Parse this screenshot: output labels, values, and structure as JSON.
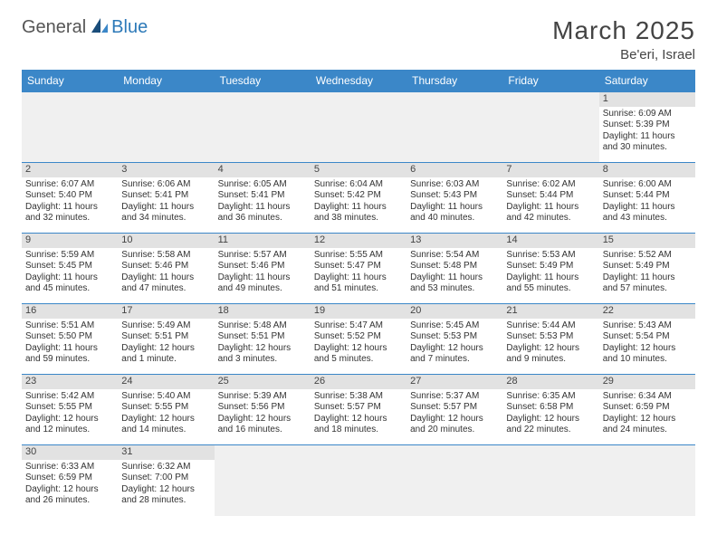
{
  "logo": {
    "general": "General",
    "blue": "Blue"
  },
  "title": "March 2025",
  "location": "Be'eri, Israel",
  "colors": {
    "header_bg": "#3b87c8",
    "header_text": "#ffffff",
    "daynum_bg": "#e2e2e2",
    "blank_bg": "#f0f0f0",
    "border": "#3b87c8",
    "body_text": "#333333",
    "title_text": "#444444"
  },
  "weekdays": [
    "Sunday",
    "Monday",
    "Tuesday",
    "Wednesday",
    "Thursday",
    "Friday",
    "Saturday"
  ],
  "weeks": [
    [
      null,
      null,
      null,
      null,
      null,
      null,
      {
        "d": "1",
        "sr": "Sunrise: 6:09 AM",
        "ss": "Sunset: 5:39 PM",
        "dl1": "Daylight: 11 hours",
        "dl2": "and 30 minutes."
      }
    ],
    [
      {
        "d": "2",
        "sr": "Sunrise: 6:07 AM",
        "ss": "Sunset: 5:40 PM",
        "dl1": "Daylight: 11 hours",
        "dl2": "and 32 minutes."
      },
      {
        "d": "3",
        "sr": "Sunrise: 6:06 AM",
        "ss": "Sunset: 5:41 PM",
        "dl1": "Daylight: 11 hours",
        "dl2": "and 34 minutes."
      },
      {
        "d": "4",
        "sr": "Sunrise: 6:05 AM",
        "ss": "Sunset: 5:41 PM",
        "dl1": "Daylight: 11 hours",
        "dl2": "and 36 minutes."
      },
      {
        "d": "5",
        "sr": "Sunrise: 6:04 AM",
        "ss": "Sunset: 5:42 PM",
        "dl1": "Daylight: 11 hours",
        "dl2": "and 38 minutes."
      },
      {
        "d": "6",
        "sr": "Sunrise: 6:03 AM",
        "ss": "Sunset: 5:43 PM",
        "dl1": "Daylight: 11 hours",
        "dl2": "and 40 minutes."
      },
      {
        "d": "7",
        "sr": "Sunrise: 6:02 AM",
        "ss": "Sunset: 5:44 PM",
        "dl1": "Daylight: 11 hours",
        "dl2": "and 42 minutes."
      },
      {
        "d": "8",
        "sr": "Sunrise: 6:00 AM",
        "ss": "Sunset: 5:44 PM",
        "dl1": "Daylight: 11 hours",
        "dl2": "and 43 minutes."
      }
    ],
    [
      {
        "d": "9",
        "sr": "Sunrise: 5:59 AM",
        "ss": "Sunset: 5:45 PM",
        "dl1": "Daylight: 11 hours",
        "dl2": "and 45 minutes."
      },
      {
        "d": "10",
        "sr": "Sunrise: 5:58 AM",
        "ss": "Sunset: 5:46 PM",
        "dl1": "Daylight: 11 hours",
        "dl2": "and 47 minutes."
      },
      {
        "d": "11",
        "sr": "Sunrise: 5:57 AM",
        "ss": "Sunset: 5:46 PM",
        "dl1": "Daylight: 11 hours",
        "dl2": "and 49 minutes."
      },
      {
        "d": "12",
        "sr": "Sunrise: 5:55 AM",
        "ss": "Sunset: 5:47 PM",
        "dl1": "Daylight: 11 hours",
        "dl2": "and 51 minutes."
      },
      {
        "d": "13",
        "sr": "Sunrise: 5:54 AM",
        "ss": "Sunset: 5:48 PM",
        "dl1": "Daylight: 11 hours",
        "dl2": "and 53 minutes."
      },
      {
        "d": "14",
        "sr": "Sunrise: 5:53 AM",
        "ss": "Sunset: 5:49 PM",
        "dl1": "Daylight: 11 hours",
        "dl2": "and 55 minutes."
      },
      {
        "d": "15",
        "sr": "Sunrise: 5:52 AM",
        "ss": "Sunset: 5:49 PM",
        "dl1": "Daylight: 11 hours",
        "dl2": "and 57 minutes."
      }
    ],
    [
      {
        "d": "16",
        "sr": "Sunrise: 5:51 AM",
        "ss": "Sunset: 5:50 PM",
        "dl1": "Daylight: 11 hours",
        "dl2": "and 59 minutes."
      },
      {
        "d": "17",
        "sr": "Sunrise: 5:49 AM",
        "ss": "Sunset: 5:51 PM",
        "dl1": "Daylight: 12 hours",
        "dl2": "and 1 minute."
      },
      {
        "d": "18",
        "sr": "Sunrise: 5:48 AM",
        "ss": "Sunset: 5:51 PM",
        "dl1": "Daylight: 12 hours",
        "dl2": "and 3 minutes."
      },
      {
        "d": "19",
        "sr": "Sunrise: 5:47 AM",
        "ss": "Sunset: 5:52 PM",
        "dl1": "Daylight: 12 hours",
        "dl2": "and 5 minutes."
      },
      {
        "d": "20",
        "sr": "Sunrise: 5:45 AM",
        "ss": "Sunset: 5:53 PM",
        "dl1": "Daylight: 12 hours",
        "dl2": "and 7 minutes."
      },
      {
        "d": "21",
        "sr": "Sunrise: 5:44 AM",
        "ss": "Sunset: 5:53 PM",
        "dl1": "Daylight: 12 hours",
        "dl2": "and 9 minutes."
      },
      {
        "d": "22",
        "sr": "Sunrise: 5:43 AM",
        "ss": "Sunset: 5:54 PM",
        "dl1": "Daylight: 12 hours",
        "dl2": "and 10 minutes."
      }
    ],
    [
      {
        "d": "23",
        "sr": "Sunrise: 5:42 AM",
        "ss": "Sunset: 5:55 PM",
        "dl1": "Daylight: 12 hours",
        "dl2": "and 12 minutes."
      },
      {
        "d": "24",
        "sr": "Sunrise: 5:40 AM",
        "ss": "Sunset: 5:55 PM",
        "dl1": "Daylight: 12 hours",
        "dl2": "and 14 minutes."
      },
      {
        "d": "25",
        "sr": "Sunrise: 5:39 AM",
        "ss": "Sunset: 5:56 PM",
        "dl1": "Daylight: 12 hours",
        "dl2": "and 16 minutes."
      },
      {
        "d": "26",
        "sr": "Sunrise: 5:38 AM",
        "ss": "Sunset: 5:57 PM",
        "dl1": "Daylight: 12 hours",
        "dl2": "and 18 minutes."
      },
      {
        "d": "27",
        "sr": "Sunrise: 5:37 AM",
        "ss": "Sunset: 5:57 PM",
        "dl1": "Daylight: 12 hours",
        "dl2": "and 20 minutes."
      },
      {
        "d": "28",
        "sr": "Sunrise: 6:35 AM",
        "ss": "Sunset: 6:58 PM",
        "dl1": "Daylight: 12 hours",
        "dl2": "and 22 minutes."
      },
      {
        "d": "29",
        "sr": "Sunrise: 6:34 AM",
        "ss": "Sunset: 6:59 PM",
        "dl1": "Daylight: 12 hours",
        "dl2": "and 24 minutes."
      }
    ],
    [
      {
        "d": "30",
        "sr": "Sunrise: 6:33 AM",
        "ss": "Sunset: 6:59 PM",
        "dl1": "Daylight: 12 hours",
        "dl2": "and 26 minutes."
      },
      {
        "d": "31",
        "sr": "Sunrise: 6:32 AM",
        "ss": "Sunset: 7:00 PM",
        "dl1": "Daylight: 12 hours",
        "dl2": "and 28 minutes."
      },
      null,
      null,
      null,
      null,
      null
    ]
  ]
}
